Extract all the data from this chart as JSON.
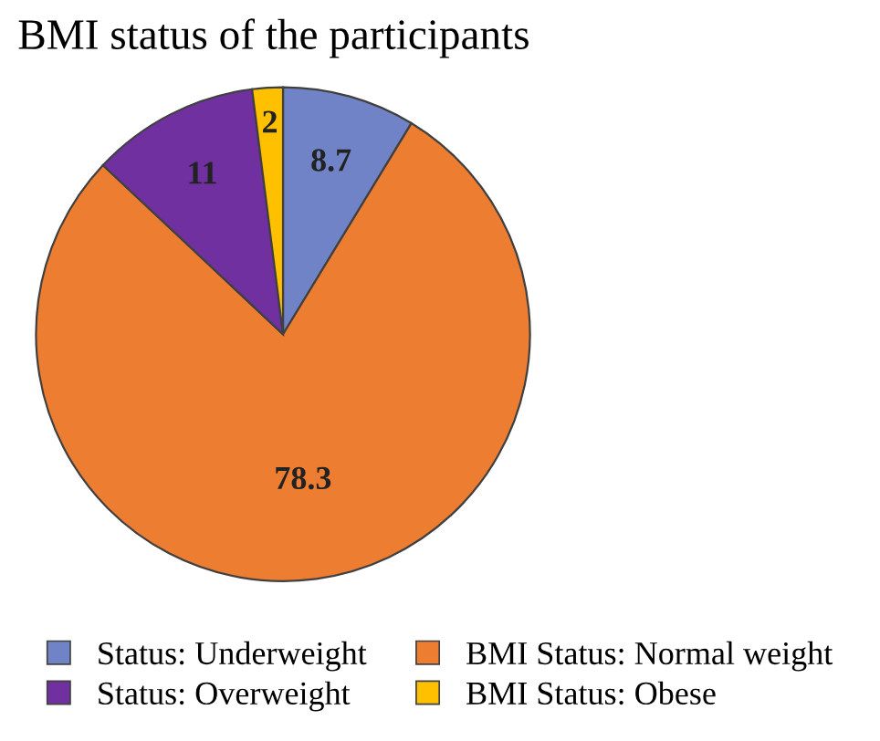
{
  "chart_data": {
    "type": "pie",
    "title": "BMI status of the participants",
    "categories": [
      "Status: Underweight",
      "BMI Status: Normal weight",
      "Status: Overweight",
      "BMI Status: Obese"
    ],
    "values": [
      8.7,
      78.3,
      11,
      2
    ],
    "colors": [
      "#7083c6",
      "#ed7d31",
      "#7030a0",
      "#ffc000"
    ],
    "data_labels": true,
    "legend": "bottom"
  }
}
